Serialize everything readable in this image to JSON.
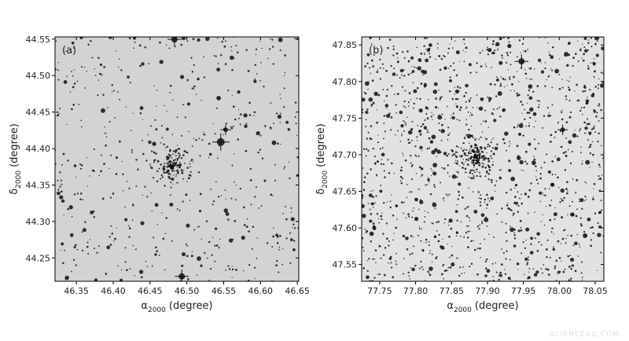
{
  "charts": [
    {
      "type": "sky-image",
      "panel_label": "(a)",
      "background": "#d3d3d3",
      "xlabel": {
        "symbol": "α",
        "subscript": "2000",
        "unit": "(degree)"
      },
      "ylabel": {
        "symbol": "δ",
        "subscript": "2000",
        "unit": "(degree)"
      },
      "xlim": [
        46.321,
        46.652
      ],
      "ylim": [
        44.218,
        44.553
      ],
      "xticks": [
        46.35,
        {
          "value": 46.4,
          "label": "46.40"
        },
        46.45,
        {
          "value": 46.5,
          "label": "46.50"
        },
        46.55,
        {
          "value": 46.6,
          "label": "46.60"
        },
        46.65
      ],
      "yticks": [
        44.25,
        {
          "value": 44.3,
          "label": "44.30"
        },
        44.35,
        {
          "value": 44.4,
          "label": "44.40"
        },
        44.45,
        {
          "value": 44.5,
          "label": "44.50"
        },
        44.55
      ]
    },
    {
      "type": "sky-image",
      "panel_label": "(b)",
      "background": "#e2e2e2",
      "xlabel": {
        "symbol": "α",
        "subscript": "2000",
        "unit": "(degree)"
      },
      "ylabel": {
        "symbol": "δ",
        "subscript": "2000",
        "unit": "(degree)"
      },
      "xlim": [
        77.725,
        78.062
      ],
      "ylim": [
        47.527,
        47.861
      ],
      "xticks": [
        77.75,
        {
          "value": 77.8,
          "label": "77.80"
        },
        77.85,
        {
          "value": 77.9,
          "label": "77.90"
        },
        77.95,
        {
          "value": 78.0,
          "label": "78.00"
        },
        78.05
      ],
      "yticks": [
        47.55,
        {
          "value": 47.6,
          "label": "47.60"
        },
        47.65,
        {
          "value": 47.7,
          "label": "47.70"
        },
        47.75,
        {
          "value": 47.8,
          "label": "47.80"
        },
        47.85
      ]
    }
  ],
  "watermark": "SCIENCEAQ.COM"
}
